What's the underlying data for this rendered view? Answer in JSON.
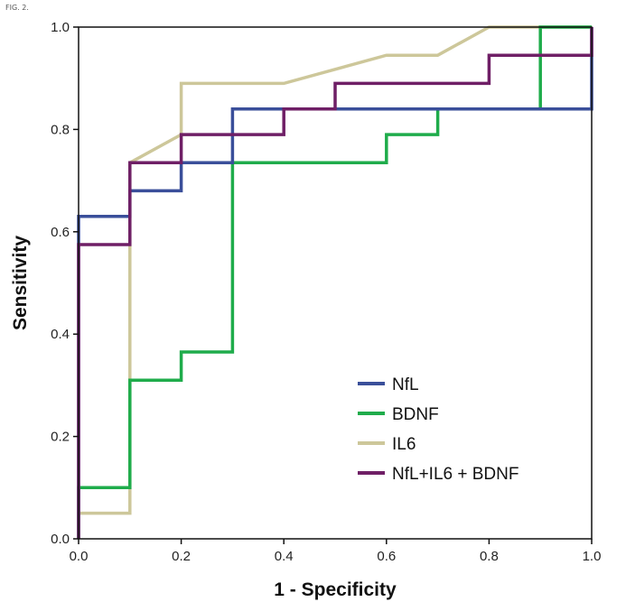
{
  "figure_label": "FIG. 2.",
  "chart_data": {
    "type": "line",
    "title": "",
    "xlabel": "1 - Specificity",
    "ylabel": "Sensitivity",
    "xlim": [
      0.0,
      1.0
    ],
    "ylim": [
      0.0,
      1.0
    ],
    "x_ticks": [
      "0.0",
      "0.2",
      "0.4",
      "0.6",
      "0.8",
      "1.0"
    ],
    "y_ticks": [
      "0.0",
      "0.2",
      "0.4",
      "0.6",
      "0.8",
      "1.0"
    ],
    "grid": false,
    "legend_position": "bottom-right",
    "series": [
      {
        "name": "NfL",
        "color": "#3a4f9a",
        "points": [
          [
            0,
            0
          ],
          [
            0,
            0.63
          ],
          [
            0.1,
            0.63
          ],
          [
            0.1,
            0.68
          ],
          [
            0.2,
            0.68
          ],
          [
            0.2,
            0.735
          ],
          [
            0.3,
            0.735
          ],
          [
            0.3,
            0.79
          ],
          [
            0.3,
            0.84
          ],
          [
            0.6,
            0.84
          ],
          [
            1.0,
            0.84
          ],
          [
            1.0,
            1.0
          ]
        ]
      },
      {
        "name": "BDNF",
        "color": "#1fac4b",
        "points": [
          [
            0,
            0
          ],
          [
            0,
            0.1
          ],
          [
            0.1,
            0.1
          ],
          [
            0.1,
            0.31
          ],
          [
            0.2,
            0.31
          ],
          [
            0.2,
            0.365
          ],
          [
            0.3,
            0.365
          ],
          [
            0.3,
            0.735
          ],
          [
            0.6,
            0.735
          ],
          [
            0.6,
            0.79
          ],
          [
            0.7,
            0.79
          ],
          [
            0.7,
            0.84
          ],
          [
            0.9,
            0.84
          ],
          [
            0.9,
            1.0
          ],
          [
            1.0,
            1.0
          ]
        ]
      },
      {
        "name": "IL6",
        "color": "#cdc79a",
        "points": [
          [
            0,
            0
          ],
          [
            0,
            0.05
          ],
          [
            0.1,
            0.05
          ],
          [
            0.1,
            0.735
          ],
          [
            0.2,
            0.79
          ],
          [
            0.2,
            0.89
          ],
          [
            0.4,
            0.89
          ],
          [
            0.6,
            0.945
          ],
          [
            0.7,
            0.945
          ],
          [
            0.8,
            1.0
          ],
          [
            1.0,
            1.0
          ]
        ]
      },
      {
        "name": "NfL+IL6 + BDNF",
        "color": "#6f1f66",
        "points": [
          [
            0,
            0
          ],
          [
            0,
            0.575
          ],
          [
            0.1,
            0.575
          ],
          [
            0.1,
            0.735
          ],
          [
            0.2,
            0.735
          ],
          [
            0.2,
            0.79
          ],
          [
            0.4,
            0.79
          ],
          [
            0.4,
            0.84
          ],
          [
            0.5,
            0.84
          ],
          [
            0.5,
            0.89
          ],
          [
            0.8,
            0.89
          ],
          [
            0.8,
            0.945
          ],
          [
            1.0,
            0.945
          ],
          [
            1.0,
            1.0
          ]
        ]
      }
    ]
  }
}
